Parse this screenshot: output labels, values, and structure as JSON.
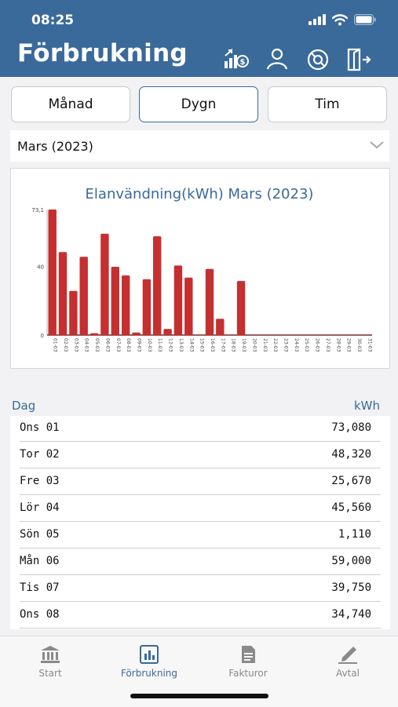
{
  "status": {
    "time": "08:25"
  },
  "header": {
    "title": "Förbrukning",
    "icons": [
      "price-chart-icon",
      "user-icon",
      "support-icon",
      "logout-icon"
    ]
  },
  "tabs": [
    {
      "label": "Månad",
      "active": false
    },
    {
      "label": "Dygn",
      "active": true
    },
    {
      "label": "Tim",
      "active": false
    }
  ],
  "period_select": {
    "value": "Mars (2023)"
  },
  "chart_data": {
    "type": "bar",
    "title": "Elanvändning(kWh) Mars (2023)",
    "categories": [
      "01-03",
      "02-03",
      "03-03",
      "04-03",
      "05-03",
      "06-03",
      "07-03",
      "08-03",
      "09-03",
      "10-03",
      "11-03",
      "12-03",
      "13-03",
      "14-03",
      "15-03",
      "16-03",
      "17-03",
      "18-03",
      "19-03",
      "20-03",
      "21-03",
      "22-03",
      "23-03",
      "24-03",
      "25-03",
      "26-03",
      "27-03",
      "28-03",
      "29-03",
      "30-03",
      "31-03"
    ],
    "values": [
      73.08,
      48.32,
      25.67,
      45.56,
      1.11,
      59.0,
      39.75,
      34.74,
      1.5,
      32.5,
      57.5,
      3.5,
      40.5,
      33.5,
      0,
      38.5,
      9.5,
      0,
      31.5,
      0,
      0,
      0,
      0,
      0,
      0,
      0,
      0,
      0,
      0,
      0,
      0
    ],
    "yticks": [
      "0",
      "40",
      "73,1"
    ],
    "ylim": [
      0,
      73.1
    ],
    "color": "#c62f2f"
  },
  "table": {
    "col_day": "Dag",
    "col_value": "kWh",
    "rows": [
      {
        "day": "Ons 01",
        "value": "73,080"
      },
      {
        "day": "Tor 02",
        "value": "48,320"
      },
      {
        "day": "Fre 03",
        "value": "25,670"
      },
      {
        "day": "Lör 04",
        "value": "45,560"
      },
      {
        "day": "Sön 05",
        "value": "1,110"
      },
      {
        "day": "Mån 06",
        "value": "59,000"
      },
      {
        "day": "Tis 07",
        "value": "39,750"
      },
      {
        "day": "Ons 08",
        "value": "34,740"
      }
    ]
  },
  "bottom_nav": [
    {
      "label": "Start",
      "icon": "bank-icon",
      "active": false
    },
    {
      "label": "Förbrukning",
      "icon": "bar-chart-icon",
      "active": true
    },
    {
      "label": "Fakturor",
      "icon": "document-icon",
      "active": false
    },
    {
      "label": "Avtal",
      "icon": "pen-icon",
      "active": false
    }
  ],
  "colors": {
    "header": "#3a6a9a",
    "bar": "#c62f2f",
    "active_nav": "#3a6a9a"
  }
}
